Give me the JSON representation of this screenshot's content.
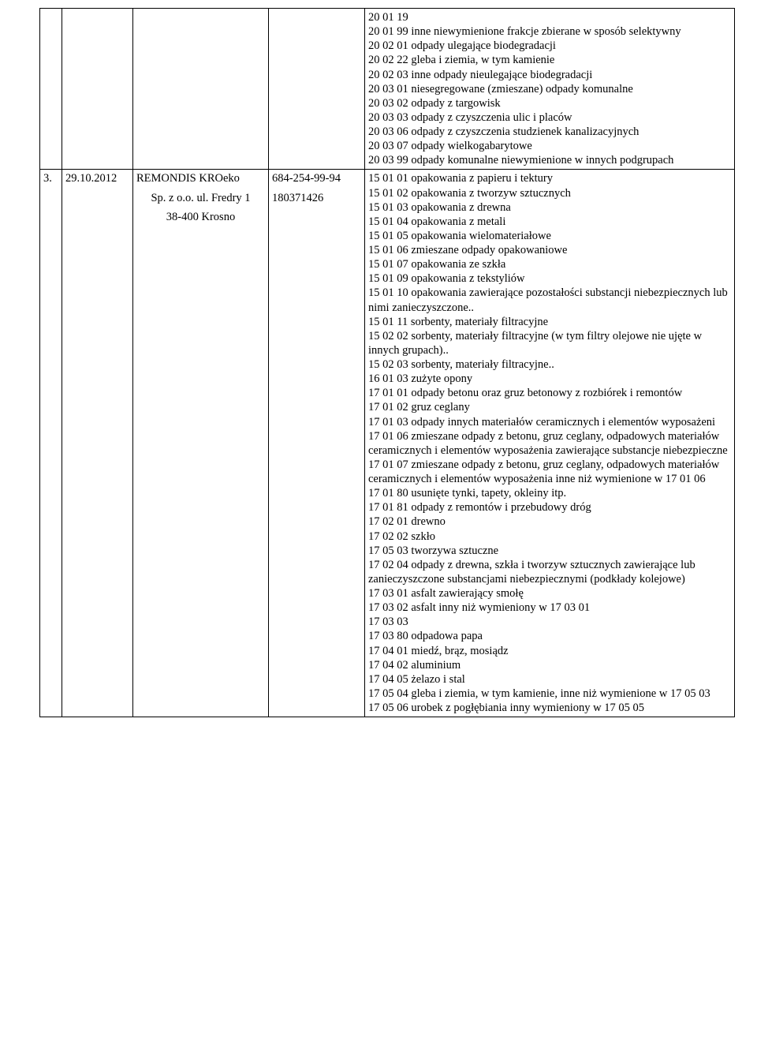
{
  "rows": [
    {
      "num": "",
      "date": "",
      "name_lines": [],
      "id_lines": [],
      "waste": [
        "20 01 19",
        "20 01 99 inne niewymienione frakcje zbierane w sposób selektywny",
        "20 02 01 odpady ulegające biodegradacji",
        "20 02 22 gleba i ziemia, w tym kamienie",
        "20 02 03 inne odpady nieulegające biodegradacji",
        "20 03 01 niesegregowane (zmieszane) odpady komunalne",
        "20 03 02 odpady z targowisk",
        "20 03 03 odpady z czyszczenia ulic i placów",
        "20 03 06 odpady z czyszczenia studzienek kanalizacyjnych",
        "20 03 07 odpady wielkogabarytowe",
        "20 03 99 odpady komunalne niewymienione w innych podgrupach"
      ]
    },
    {
      "num": "3.",
      "date": "29.10.2012",
      "name_lines": [
        "REMONDIS KROeko",
        "Sp. z o.o. ul. Fredry 1",
        "38-400 Krosno"
      ],
      "id_lines": [
        "684-254-99-94",
        "180371426"
      ],
      "waste": [
        "15 01 01 opakowania z papieru i tektury",
        "15 01 02 opakowania z tworzyw sztucznych",
        "15 01 03 opakowania z drewna",
        "15 01 04 opakowania z metali",
        "15 01 05 opakowania wielomateriałowe",
        "15 01 06 zmieszane odpady opakowaniowe",
        "15 01 07 opakowania ze szkła",
        "15 01 09 opakowania z tekstyliów",
        "15 01 10  opakowania zawierające pozostałości substancji niebezpiecznych lub nimi zanieczyszczone..",
        "15 01 11   sorbenty, materiały filtracyjne",
        "15 02 02   sorbenty, materiały filtracyjne (w tym filtry olejowe nie ujęte w innych grupach)..",
        "15 02 03 sorbenty, materiały filtracyjne..",
        "16 01 03 zużyte opony",
        "17 01 01 odpady betonu oraz gruz betonowy z rozbiórek i remontów",
        "17 01 02 gruz ceglany",
        "17 01 03 odpady innych materiałów ceramicznych i elementów wyposażeni",
        "17 01 06   zmieszane odpady z betonu, gruz ceglany, odpadowych materiałów ceramicznych i elementów wyposażenia zawierające substancje niebezpieczne",
        "17 01 07 zmieszane odpady z betonu, gruz ceglany, odpadowych materiałów ceramicznych i elementów wyposażenia inne niż wymienione w 17 01 06",
        "17 01 80 usunięte tynki, tapety, okleiny itp.",
        "17 01 81 odpady z remontów i przebudowy dróg",
        "17 02 01 drewno",
        "17 02 02 szkło",
        "17 05 03 tworzywa sztuczne",
        "17 02 04   odpady z drewna, szkła i tworzyw sztucznych zawierające lub zanieczyszczone substancjami niebezpiecznymi  (podkłady kolejowe)",
        "17 03 01    asfalt zawierający smołę",
        "17 03 02 asfalt inny niż wymieniony w 17 03 01",
        "17 03 03",
        "17 03 80 odpadowa papa",
        "17 04 01 miedź, brąz, mosiądz",
        "17 04 02 aluminium",
        "17 04 05 żelazo i stal",
        "17 05 04 gleba i ziemia, w tym kamienie, inne niż wymienione w 17 05 03",
        "17 05 06 urobek z pogłębiania inny wymieniony w 17 05 05"
      ]
    }
  ]
}
